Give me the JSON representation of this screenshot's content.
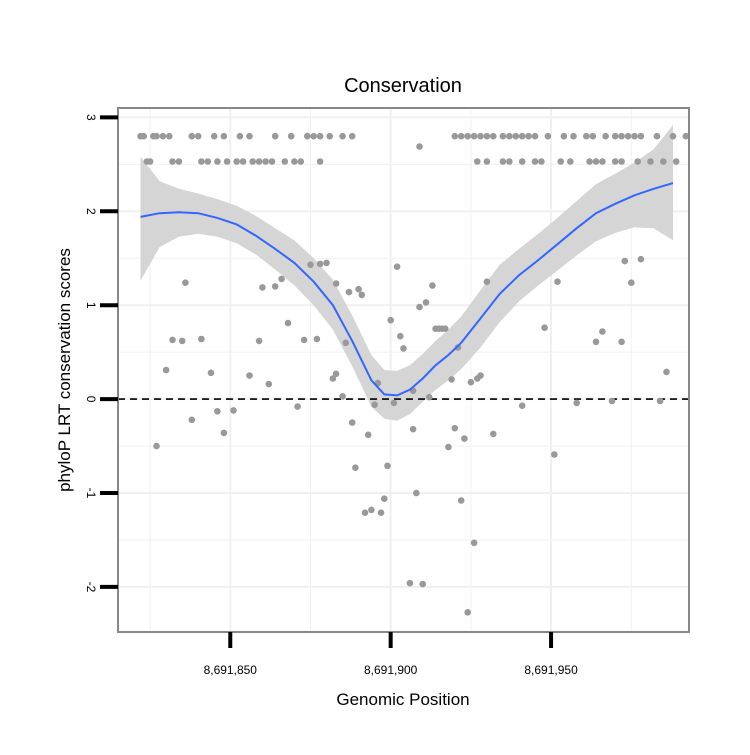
{
  "chart_data": {
    "type": "scatter",
    "title": "Conservation",
    "xlabel": "Genomic Position",
    "ylabel": "phyloP LRT conservation scores",
    "xlim": [
      8691815,
      8691993
    ],
    "ylim": [
      -2.48,
      3.1
    ],
    "x_ticks": [
      8691850,
      8691900,
      8691950
    ],
    "x_tick_labels": [
      "8,691,850",
      "8,691,900",
      "8,691,950"
    ],
    "y_ticks": [
      -2,
      -1,
      0,
      1,
      2,
      3
    ],
    "y_tick_labels": [
      "-2",
      "-1",
      "0",
      "1",
      "2",
      "3"
    ],
    "grid": true,
    "reference_line": {
      "y": 0,
      "style": "dashed"
    },
    "colors": {
      "points": "#999999",
      "smooth_line": "#3366FF",
      "confidence_band": "#D3D3D3",
      "grid": "#F0F0F0",
      "panel_border": "#888888",
      "reference_line": "#000000"
    },
    "series": [
      {
        "type": "points",
        "points": [
          [
            8691822,
            2.8
          ],
          [
            8691823,
            2.8
          ],
          [
            8691826,
            2.8
          ],
          [
            8691827,
            2.8
          ],
          [
            8691829,
            2.8
          ],
          [
            8691831,
            2.8
          ],
          [
            8691838,
            2.8
          ],
          [
            8691840,
            2.8
          ],
          [
            8691845,
            2.8
          ],
          [
            8691848,
            2.8
          ],
          [
            8691853,
            2.8
          ],
          [
            8691856,
            2.8
          ],
          [
            8691864,
            2.8
          ],
          [
            8691869,
            2.8
          ],
          [
            8691874,
            2.8
          ],
          [
            8691876,
            2.8
          ],
          [
            8691878,
            2.8
          ],
          [
            8691881,
            2.8
          ],
          [
            8691885,
            2.8
          ],
          [
            8691888,
            2.8
          ],
          [
            8691824,
            2.53
          ],
          [
            8691825,
            2.53
          ],
          [
            8691832,
            2.53
          ],
          [
            8691834,
            2.53
          ],
          [
            8691841,
            2.53
          ],
          [
            8691843,
            2.53
          ],
          [
            8691846,
            2.53
          ],
          [
            8691849,
            2.53
          ],
          [
            8691852,
            2.53
          ],
          [
            8691854,
            2.53
          ],
          [
            8691857,
            2.53
          ],
          [
            8691859,
            2.53
          ],
          [
            8691861,
            2.53
          ],
          [
            8691863,
            2.53
          ],
          [
            8691867,
            2.53
          ],
          [
            8691870,
            2.53
          ],
          [
            8691872,
            2.53
          ],
          [
            8691878,
            2.53
          ],
          [
            8691920,
            2.8
          ],
          [
            8691922,
            2.8
          ],
          [
            8691924,
            2.8
          ],
          [
            8691926,
            2.8
          ],
          [
            8691928,
            2.8
          ],
          [
            8691930,
            2.8
          ],
          [
            8691932,
            2.8
          ],
          [
            8691935,
            2.8
          ],
          [
            8691937,
            2.8
          ],
          [
            8691939,
            2.8
          ],
          [
            8691941,
            2.8
          ],
          [
            8691943,
            2.8
          ],
          [
            8691945,
            2.8
          ],
          [
            8691949,
            2.8
          ],
          [
            8691954,
            2.8
          ],
          [
            8691957,
            2.8
          ],
          [
            8691961,
            2.8
          ],
          [
            8691963,
            2.8
          ],
          [
            8691967,
            2.8
          ],
          [
            8691970,
            2.8
          ],
          [
            8691972,
            2.8
          ],
          [
            8691974,
            2.8
          ],
          [
            8691976,
            2.8
          ],
          [
            8691978,
            2.8
          ],
          [
            8691983,
            2.8
          ],
          [
            8691988,
            2.8
          ],
          [
            8691992,
            2.8
          ],
          [
            8691927,
            2.53
          ],
          [
            8691930,
            2.53
          ],
          [
            8691935,
            2.53
          ],
          [
            8691937,
            2.53
          ],
          [
            8691941,
            2.53
          ],
          [
            8691945,
            2.53
          ],
          [
            8691947,
            2.53
          ],
          [
            8691953,
            2.53
          ],
          [
            8691956,
            2.53
          ],
          [
            8691962,
            2.53
          ],
          [
            8691964,
            2.53
          ],
          [
            8691966,
            2.53
          ],
          [
            8691970,
            2.53
          ],
          [
            8691972,
            2.53
          ],
          [
            8691977,
            2.53
          ],
          [
            8691981,
            2.53
          ],
          [
            8691985,
            2.53
          ],
          [
            8691989,
            2.53
          ],
          [
            8691909,
            2.69
          ],
          [
            8691827,
            -0.5
          ],
          [
            8691830,
            0.31
          ],
          [
            8691832,
            0.63
          ],
          [
            8691835,
            0.62
          ],
          [
            8691836,
            1.24
          ],
          [
            8691838,
            -0.22
          ],
          [
            8691841,
            0.64
          ],
          [
            8691844,
            0.28
          ],
          [
            8691846,
            -0.13
          ],
          [
            8691848,
            -0.36
          ],
          [
            8691851,
            -0.12
          ],
          [
            8691856,
            0.25
          ],
          [
            8691859,
            0.62
          ],
          [
            8691860,
            1.19
          ],
          [
            8691862,
            0.16
          ],
          [
            8691864,
            1.2
          ],
          [
            8691866,
            1.28
          ],
          [
            8691868,
            0.81
          ],
          [
            8691871,
            -0.08
          ],
          [
            8691873,
            0.63
          ],
          [
            8691875,
            1.43
          ],
          [
            8691877,
            0.64
          ],
          [
            8691878,
            1.44
          ],
          [
            8691880,
            1.45
          ],
          [
            8691882,
            0.22
          ],
          [
            8691883,
            0.27
          ],
          [
            8691883,
            1.23
          ],
          [
            8691885,
            0.03
          ],
          [
            8691886,
            0.6
          ],
          [
            8691887,
            1.14
          ],
          [
            8691888,
            -0.25
          ],
          [
            8691889,
            -0.73
          ],
          [
            8691890,
            1.17
          ],
          [
            8691891,
            1.11
          ],
          [
            8691892,
            -1.21
          ],
          [
            8691893,
            -0.38
          ],
          [
            8691894,
            -1.18
          ],
          [
            8691895,
            -0.06
          ],
          [
            8691896,
            0.17
          ],
          [
            8691897,
            -1.21
          ],
          [
            8691898,
            -1.06
          ],
          [
            8691899,
            -0.71
          ],
          [
            8691900,
            0.84
          ],
          [
            8691901,
            -0.04
          ],
          [
            8691902,
            1.41
          ],
          [
            8691903,
            0.67
          ],
          [
            8691904,
            0.54
          ],
          [
            8691906,
            -1.96
          ],
          [
            8691907,
            0.09
          ],
          [
            8691907,
            -0.32
          ],
          [
            8691908,
            -1.0
          ],
          [
            8691909,
            0.98
          ],
          [
            8691910,
            -1.97
          ],
          [
            8691911,
            1.03
          ],
          [
            8691912,
            0.02
          ],
          [
            8691913,
            1.21
          ],
          [
            8691914,
            0.75
          ],
          [
            8691915,
            0.75
          ],
          [
            8691916,
            0.75
          ],
          [
            8691917,
            0.75
          ],
          [
            8691918,
            -0.51
          ],
          [
            8691919,
            0.21
          ],
          [
            8691920,
            -0.31
          ],
          [
            8691921,
            0.55
          ],
          [
            8691922,
            -1.08
          ],
          [
            8691923,
            -0.42
          ],
          [
            8691924,
            -2.27
          ],
          [
            8691925,
            0.18
          ],
          [
            8691926,
            -1.53
          ],
          [
            8691927,
            0.22
          ],
          [
            8691928,
            0.25
          ],
          [
            8691930,
            1.25
          ],
          [
            8691932,
            -0.37
          ],
          [
            8691941,
            -0.07
          ],
          [
            8691948,
            0.76
          ],
          [
            8691951,
            -0.59
          ],
          [
            8691952,
            1.25
          ],
          [
            8691958,
            -0.04
          ],
          [
            8691964,
            0.61
          ],
          [
            8691966,
            0.72
          ],
          [
            8691969,
            -0.02
          ],
          [
            8691972,
            0.61
          ],
          [
            8691973,
            1.47
          ],
          [
            8691975,
            1.24
          ],
          [
            8691978,
            1.49
          ],
          [
            8691984,
            -0.02
          ],
          [
            8691986,
            0.29
          ]
        ]
      },
      {
        "type": "smooth",
        "x": [
          8691822,
          8691828,
          8691834,
          8691840,
          8691846,
          8691852,
          8691858,
          8691864,
          8691870,
          8691876,
          8691882,
          8691888,
          8691894,
          8691898,
          8691902,
          8691906,
          8691910,
          8691914,
          8691918,
          8691922,
          8691928,
          8691934,
          8691940,
          8691946,
          8691952,
          8691958,
          8691964,
          8691970,
          8691976,
          8691982,
          8691988
        ],
        "y": [
          1.94,
          1.98,
          1.99,
          1.98,
          1.93,
          1.86,
          1.74,
          1.6,
          1.45,
          1.25,
          1.0,
          0.62,
          0.2,
          0.05,
          0.04,
          0.1,
          0.22,
          0.36,
          0.47,
          0.6,
          0.86,
          1.12,
          1.32,
          1.48,
          1.65,
          1.82,
          1.98,
          2.08,
          2.17,
          2.24,
          2.3
        ],
        "ymin": [
          1.26,
          1.62,
          1.73,
          1.76,
          1.73,
          1.66,
          1.54,
          1.38,
          1.21,
          1.0,
          0.74,
          0.35,
          -0.08,
          -0.21,
          -0.23,
          -0.16,
          -0.03,
          0.1,
          0.2,
          0.32,
          0.55,
          0.82,
          1.04,
          1.21,
          1.37,
          1.53,
          1.68,
          1.77,
          1.83,
          1.82,
          1.69
        ],
        "ymax": [
          2.58,
          2.32,
          2.24,
          2.19,
          2.13,
          2.06,
          1.95,
          1.82,
          1.69,
          1.5,
          1.27,
          0.89,
          0.47,
          0.31,
          0.3,
          0.36,
          0.48,
          0.62,
          0.74,
          0.88,
          1.16,
          1.43,
          1.6,
          1.76,
          1.93,
          2.11,
          2.29,
          2.4,
          2.52,
          2.66,
          2.92
        ]
      }
    ]
  }
}
